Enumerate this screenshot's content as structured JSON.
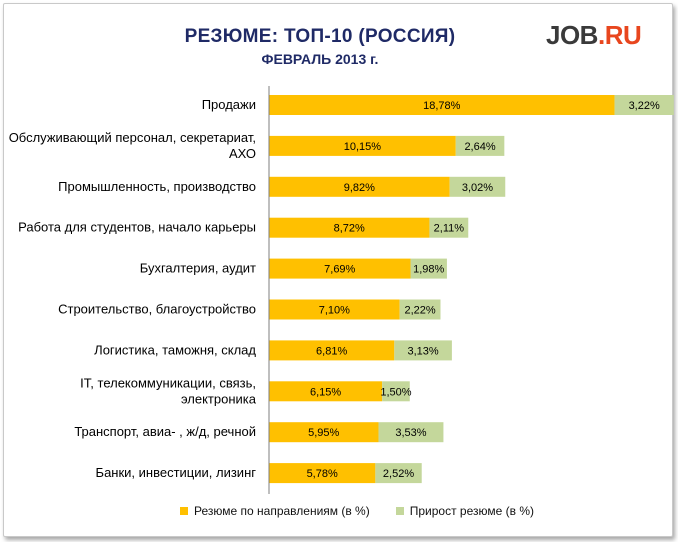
{
  "title": "РЕЗЮМЕ: ТОП-10 (РОССИЯ)",
  "subtitle": "ФЕВРАЛЬ 2013 г.",
  "logo": {
    "job": "JOB",
    "dot": ".",
    "ru": "RU"
  },
  "colors": {
    "series1": "#ffc000",
    "series2": "#c4d79b",
    "text": "#000000",
    "title": "#1f2a66",
    "logo_accent": "#e8461e"
  },
  "chart_data": {
    "type": "bar",
    "orientation": "horizontal",
    "stacked": true,
    "categories": [
      [
        "Продажи"
      ],
      [
        "Обслуживающий персонал, секретариат,",
        "АХО"
      ],
      [
        "Промышленность, производство"
      ],
      [
        "Работа для студентов, начало карьеры"
      ],
      [
        "Бухгалтерия, аудит"
      ],
      [
        "Строительство, благоустройство"
      ],
      [
        "Логистика, таможня, склад"
      ],
      [
        "IT, телекоммуникации, связь,",
        "электроника"
      ],
      [
        "Транспорт, авиа- , ж/д, речной"
      ],
      [
        "Банки, инвестиции, лизинг"
      ]
    ],
    "series": [
      {
        "name": "Резюме по направлениям (в %)",
        "values": [
          18.78,
          10.15,
          9.82,
          8.72,
          7.69,
          7.1,
          6.81,
          6.15,
          5.95,
          5.78
        ],
        "labels": [
          "18,78%",
          "10,15%",
          "9,82%",
          "8,72%",
          "7,69%",
          "7,10%",
          "6,81%",
          "6,15%",
          "5,95%",
          "5,78%"
        ]
      },
      {
        "name": "Прирост резюме (в %)",
        "values": [
          3.22,
          2.64,
          3.02,
          2.11,
          1.98,
          2.22,
          3.13,
          1.5,
          3.53,
          2.52
        ],
        "labels": [
          "3,22%",
          "2,64%",
          "3,02%",
          "2,11%",
          "1,98%",
          "2,22%",
          "3,13%",
          "1,50%",
          "3,53%",
          "2,52%"
        ]
      }
    ],
    "legend_position": "bottom",
    "grid": false
  }
}
